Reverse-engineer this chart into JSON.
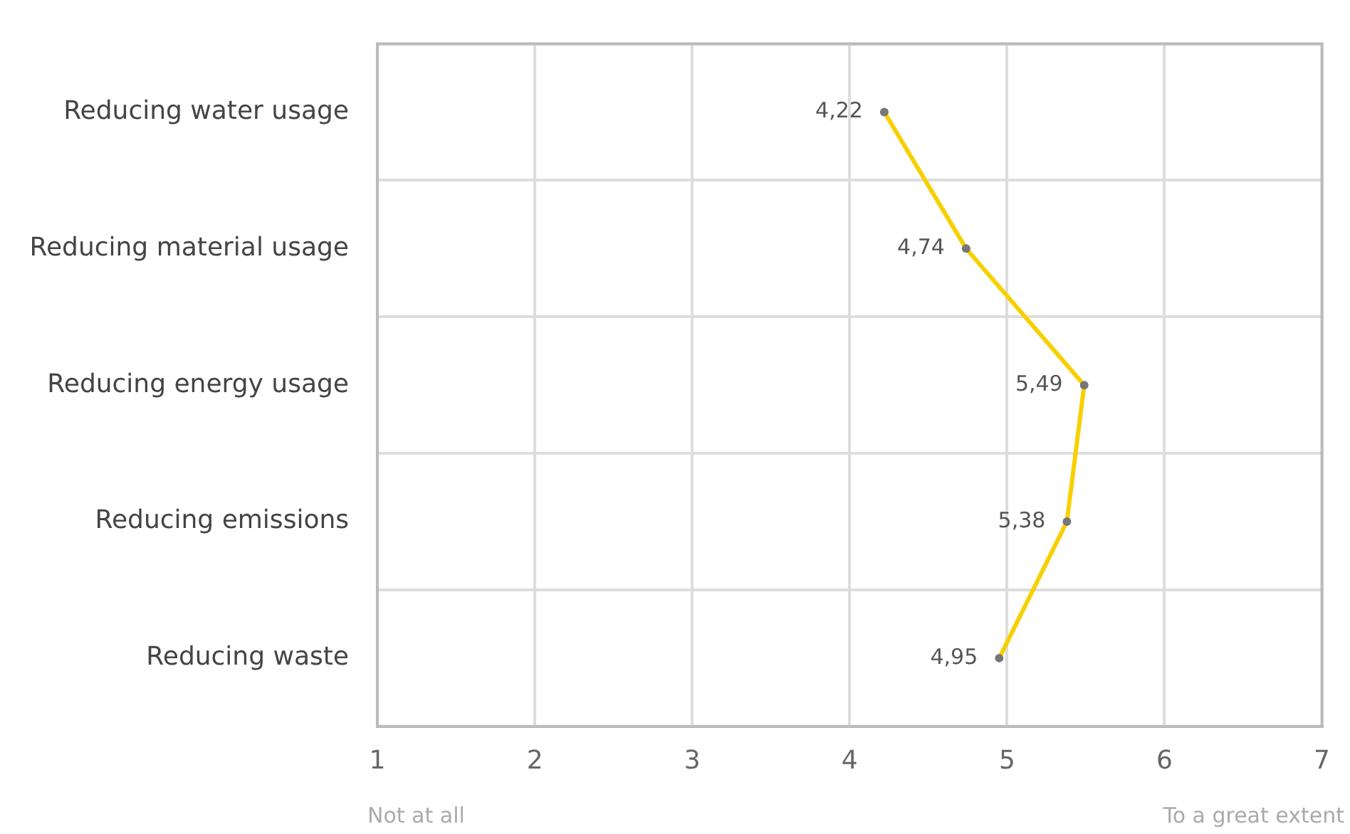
{
  "chart_data": {
    "type": "line",
    "orientation": "horizontal",
    "categories": [
      "Reducing water usage",
      "Reducing material usage",
      "Reducing energy usage",
      "Reducing emissions",
      "Reducing waste"
    ],
    "series": [
      {
        "color": "#f7d000",
        "values": [
          4.22,
          4.74,
          5.49,
          5.38,
          4.95
        ],
        "value_labels": [
          "4,22",
          "4,74",
          "5,49",
          "5,38",
          "4,95"
        ]
      }
    ],
    "xlim": [
      1,
      7
    ],
    "xticks": [
      1,
      2,
      3,
      4,
      5,
      6,
      7
    ],
    "grid": true,
    "legend": false,
    "marker": "circle",
    "line_style": "solid",
    "annotations": [
      "Not at all",
      "To a great extent"
    ]
  }
}
